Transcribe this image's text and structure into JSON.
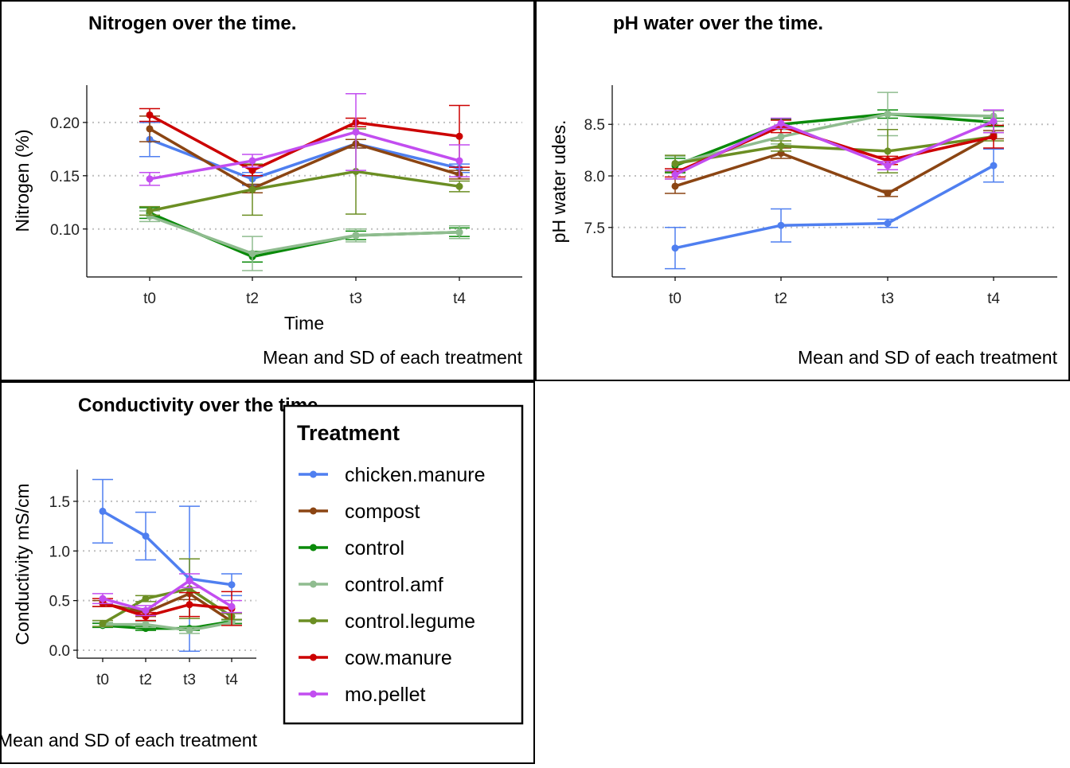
{
  "legend": {
    "title": "Treatment",
    "items": [
      {
        "label": "chicken.manure",
        "color": "#4f7ff0"
      },
      {
        "label": "compost",
        "color": "#8b4513"
      },
      {
        "label": "control",
        "color": "#0a8a0a"
      },
      {
        "label": "control.amf",
        "color": "#8fbc8f"
      },
      {
        "label": "control.legume",
        "color": "#6b8e23"
      },
      {
        "label": "cow.manure",
        "color": "#cc0000"
      },
      {
        "label": "mo.pellet",
        "color": "#c24df0"
      }
    ]
  },
  "chart_data": [
    {
      "type": "line",
      "title": "Nitrogen over the time.",
      "xlabel": "Time",
      "ylabel": "Nitrogen (%)",
      "caption": "Mean and SD of each treatment",
      "categories": [
        "t0",
        "t2",
        "t3",
        "t4"
      ],
      "ylim": [
        0.055,
        0.235
      ],
      "yticks": [
        "0.10",
        "0.15",
        "0.20"
      ],
      "ytick_values": [
        0.1,
        0.15,
        0.2
      ],
      "grid": "horizontal dotted",
      "series": [
        {
          "name": "chicken.manure",
          "values": [
            0.184,
            0.147,
            0.18,
            0.157
          ],
          "sd": [
            0.016,
            0.006,
            0.004,
            0.004
          ]
        },
        {
          "name": "compost",
          "values": [
            0.194,
            0.138,
            0.18,
            0.151
          ],
          "sd": [
            0.012,
            0.004,
            0.004,
            0.004
          ]
        },
        {
          "name": "control",
          "values": [
            0.115,
            0.074,
            0.094,
            0.097
          ],
          "sd": [
            0.005,
            0.005,
            0.004,
            0.004
          ]
        },
        {
          "name": "control.amf",
          "values": [
            0.112,
            0.077,
            0.094,
            0.097
          ],
          "sd": [
            0.005,
            0.016,
            0.006,
            0.006
          ]
        },
        {
          "name": "control.legume",
          "values": [
            0.117,
            0.137,
            0.154,
            0.14
          ],
          "sd": [
            0.004,
            0.024,
            0.04,
            0.005
          ]
        },
        {
          "name": "cow.manure",
          "values": [
            0.207,
            0.155,
            0.2,
            0.187
          ],
          "sd": [
            0.006,
            0.005,
            0.004,
            0.029
          ]
        },
        {
          "name": "mo.pellet",
          "values": [
            0.147,
            0.164,
            0.191,
            0.164
          ],
          "sd": [
            0.006,
            0.006,
            0.036,
            0.015
          ]
        }
      ]
    },
    {
      "type": "line",
      "title": "pH water over the time.",
      "xlabel": "",
      "ylabel": "pH water udes.",
      "caption": "Mean and SD of each treatment",
      "categories": [
        "t0",
        "t2",
        "t3",
        "t4"
      ],
      "ylim": [
        7.02,
        8.88
      ],
      "yticks": [
        "7.5",
        "8.0",
        "8.5"
      ],
      "ytick_values": [
        7.5,
        8.0,
        8.5
      ],
      "grid": "horizontal dotted",
      "series": [
        {
          "name": "chicken.manure",
          "values": [
            7.3,
            7.52,
            7.54,
            8.1
          ],
          "sd": [
            0.2,
            0.16,
            0.04,
            0.16
          ]
        },
        {
          "name": "compost",
          "values": [
            7.9,
            8.22,
            7.83,
            8.4
          ],
          "sd": [
            0.07,
            0.05,
            0.03,
            0.04
          ]
        },
        {
          "name": "control",
          "values": [
            8.1,
            8.5,
            8.6,
            8.52
          ],
          "sd": [
            0.07,
            0.05,
            0.04,
            0.04
          ]
        },
        {
          "name": "control.amf",
          "values": [
            8.12,
            8.38,
            8.6,
            8.58
          ],
          "sd": [
            0.07,
            0.07,
            0.21,
            0.05
          ]
        },
        {
          "name": "control.legume",
          "values": [
            8.12,
            8.29,
            8.24,
            8.38
          ],
          "sd": [
            0.08,
            0.05,
            0.21,
            0.04
          ]
        },
        {
          "name": "cow.manure",
          "values": [
            8.03,
            8.48,
            8.15,
            8.38
          ],
          "sd": [
            0.04,
            0.06,
            0.04,
            0.11
          ]
        },
        {
          "name": "mo.pellet",
          "values": [
            8.01,
            8.51,
            8.1,
            8.53
          ],
          "sd": [
            0.04,
            0.05,
            0.04,
            0.11
          ]
        }
      ]
    },
    {
      "type": "line",
      "title": "Conductivity over the time.",
      "xlabel": "",
      "ylabel": "Conductivity mS/cm",
      "caption": "Mean and SD of each treatment",
      "categories": [
        "t0",
        "t2",
        "t3",
        "t4"
      ],
      "ylim": [
        -0.08,
        1.82
      ],
      "yticks": [
        "0.0",
        "0.5",
        "1.0",
        "1.5"
      ],
      "ytick_values": [
        0.0,
        0.5,
        1.0,
        1.5
      ],
      "grid": "horizontal dotted",
      "series": [
        {
          "name": "chicken.manure",
          "values": [
            1.4,
            1.15,
            0.72,
            0.66
          ],
          "sd": [
            0.32,
            0.24,
            0.73,
            0.11
          ]
        },
        {
          "name": "compost",
          "values": [
            0.47,
            0.38,
            0.57,
            0.29
          ],
          "sd": [
            0.03,
            0.04,
            0.06,
            0.02
          ]
        },
        {
          "name": "control",
          "values": [
            0.25,
            0.22,
            0.22,
            0.29
          ],
          "sd": [
            0.02,
            0.02,
            0.02,
            0.02
          ]
        },
        {
          "name": "control.amf",
          "values": [
            0.26,
            0.26,
            0.2,
            0.28
          ],
          "sd": [
            0.02,
            0.03,
            0.03,
            0.02
          ]
        },
        {
          "name": "control.legume",
          "values": [
            0.27,
            0.52,
            0.62,
            0.34
          ],
          "sd": [
            0.03,
            0.03,
            0.3,
            0.03
          ]
        },
        {
          "name": "cow.manure",
          "values": [
            0.48,
            0.34,
            0.46,
            0.42
          ],
          "sd": [
            0.04,
            0.04,
            0.12,
            0.17
          ]
        },
        {
          "name": "mo.pellet",
          "values": [
            0.52,
            0.4,
            0.7,
            0.44
          ],
          "sd": [
            0.05,
            0.05,
            0.07,
            0.06
          ]
        }
      ]
    }
  ]
}
